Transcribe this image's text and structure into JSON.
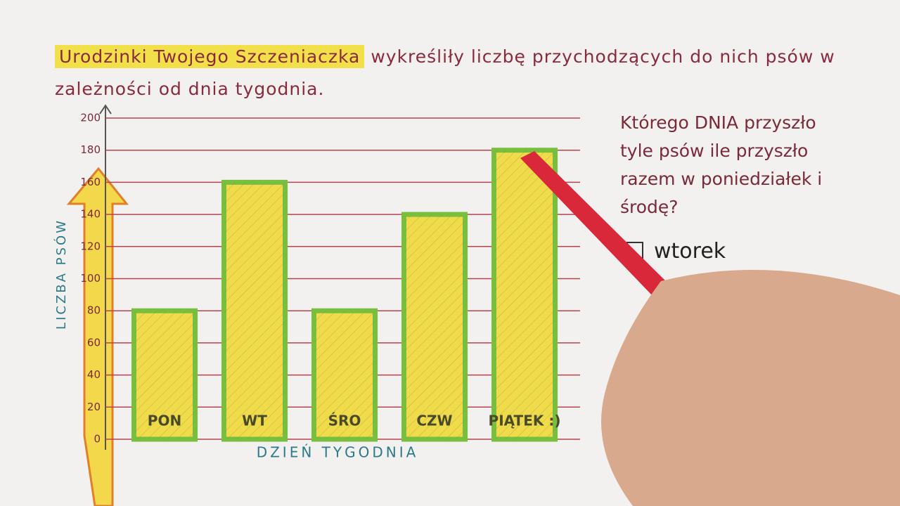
{
  "chart_data": {
    "type": "bar",
    "title_highlight": "Urodzinki Twojego Szczeniaczka",
    "title": "wykreśliły liczbę przychodzących do nich psów w zależności od dnia tygodnia.",
    "categories": [
      "PON",
      "WT",
      "ŚRO",
      "CZW",
      "PIĄTEK :)"
    ],
    "values": [
      80,
      160,
      80,
      140,
      180
    ],
    "color": "#f0dc4a",
    "border_color": "#79bf3e",
    "grid_color": "#b8434f",
    "ylim": [
      0,
      200
    ],
    "yticks": [
      0,
      20,
      40,
      60,
      80,
      100,
      120,
      140,
      160,
      180,
      200
    ],
    "grid": true,
    "ylabel": "LICZBA PSÓW",
    "xlabel": "DZIEŃ TYGODNIA",
    "question": "Którego DNIA przyszło tyle psów ile przyszło razem w poniedziałek i środę?",
    "answer": "wtorek"
  }
}
